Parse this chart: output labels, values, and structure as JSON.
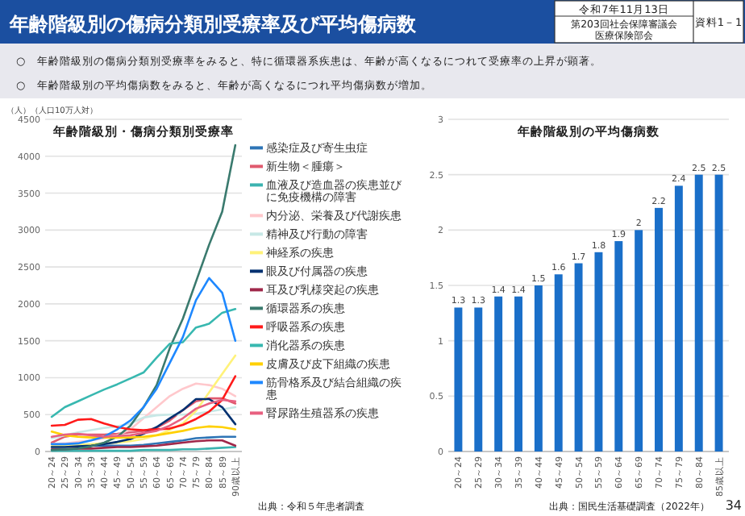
{
  "chart_data": [
    {
      "type": "line",
      "title": "年齢階級別・傷病分類別受療率",
      "ylabel": "（人）（人口10万人対）",
      "categories": [
        "20～24",
        "25～29",
        "30～34",
        "35～39",
        "40～44",
        "45～49",
        "50～54",
        "55～59",
        "60～64",
        "65～69",
        "70～74",
        "75～79",
        "80～84",
        "85～89",
        "90歳以上"
      ],
      "ylim": [
        0,
        4500
      ],
      "yticks": [
        0,
        500,
        1000,
        1500,
        2000,
        2500,
        3000,
        3500,
        4000,
        4500
      ],
      "grid": "y",
      "legend": "right",
      "series": [
        {
          "name": "感染症及び寄生虫症",
          "color": "#2e75b6",
          "values": [
            90,
            90,
            90,
            80,
            80,
            80,
            80,
            90,
            110,
            130,
            150,
            180,
            190,
            200,
            200
          ]
        },
        {
          "name": "新生物＜腫瘍＞",
          "color": "#e05a6e",
          "values": [
            120,
            200,
            230,
            230,
            230,
            240,
            260,
            280,
            320,
            420,
            560,
            680,
            720,
            720,
            650
          ]
        },
        {
          "name": "血液及び造血器の疾患並びに免疫機構の障害",
          "color": "#3cb3b0",
          "values": [
            10,
            10,
            10,
            10,
            10,
            10,
            10,
            20,
            20,
            20,
            30,
            30,
            40,
            50,
            60
          ]
        },
        {
          "name": "内分泌、栄養及び代謝疾患",
          "color": "#ffc8cc",
          "values": [
            100,
            110,
            130,
            150,
            180,
            220,
            300,
            450,
            600,
            750,
            850,
            920,
            900,
            850,
            750
          ]
        },
        {
          "name": "精神及び行動の障害",
          "color": "#c7e8e6",
          "values": [
            180,
            220,
            260,
            290,
            320,
            340,
            380,
            460,
            490,
            500,
            500,
            510,
            540,
            570,
            600
          ]
        },
        {
          "name": "神経系の疾患",
          "color": "#fff27a",
          "values": [
            80,
            80,
            90,
            100,
            110,
            120,
            140,
            170,
            220,
            290,
            380,
            550,
            800,
            1050,
            1300
          ]
        },
        {
          "name": "眼及び付属器の疾患",
          "color": "#003070",
          "values": [
            60,
            60,
            70,
            80,
            100,
            130,
            170,
            240,
            330,
            450,
            560,
            710,
            710,
            600,
            370
          ]
        },
        {
          "name": "耳及び乳様突起の疾患",
          "color": "#a0284a",
          "values": [
            30,
            30,
            40,
            40,
            50,
            60,
            60,
            70,
            80,
            100,
            120,
            140,
            150,
            150,
            80
          ]
        },
        {
          "name": "循環器系の疾患",
          "color": "#3a7a6e",
          "values": [
            20,
            30,
            40,
            70,
            120,
            200,
            350,
            600,
            900,
            1400,
            1800,
            2300,
            2800,
            3250,
            4150
          ]
        },
        {
          "name": "呼吸器系の疾患",
          "color": "#ff1a1a",
          "values": [
            350,
            360,
            430,
            440,
            380,
            330,
            300,
            290,
            300,
            310,
            360,
            440,
            540,
            700,
            1020
          ]
        },
        {
          "name": "消化器系の疾患",
          "color": "#38b8b0",
          "values": [
            470,
            600,
            680,
            760,
            840,
            910,
            990,
            1070,
            1270,
            1460,
            1480,
            1680,
            1730,
            1880,
            1930
          ]
        },
        {
          "name": "皮膚及び皮下組織の疾患",
          "color": "#ffd000",
          "values": [
            270,
            220,
            200,
            190,
            190,
            190,
            190,
            200,
            220,
            250,
            280,
            320,
            340,
            330,
            300
          ]
        },
        {
          "name": "筋骨格系及び結合組織の疾患",
          "color": "#1e88ff",
          "values": [
            100,
            100,
            110,
            150,
            200,
            300,
            420,
            600,
            850,
            1200,
            1550,
            2050,
            2350,
            2150,
            1500
          ]
        },
        {
          "name": "腎尿路生殖器系の疾患",
          "color": "#e86080",
          "values": [
            200,
            230,
            240,
            220,
            200,
            210,
            220,
            250,
            280,
            350,
            450,
            580,
            650,
            700,
            680
          ]
        }
      ],
      "annotations": [
        "年齢階級別の傷病分類別受療率及び平均傷病数",
        "令和7年11月13日",
        "第203回社会保障審議会医療保険部会",
        "資料1－1",
        "○　年齢階級別の傷病分類別受療率をみると、特に循環器系疾患は、年齢が高くなるにつれて受療率の上昇が顕著。",
        "○　年齢階級別の平均傷病数をみると、年齢が高くなるにつれ平均傷病数が増加。",
        "出典：令和５年患者調査"
      ]
    },
    {
      "type": "bar",
      "title": "年齢階級別の平均傷病数",
      "categories": [
        "20～24",
        "25～29",
        "30～34",
        "35～39",
        "40～44",
        "45～49",
        "50～54",
        "55～59",
        "60～64",
        "65～69",
        "70～74",
        "75～79",
        "80～84",
        "85歳以上"
      ],
      "values": [
        1.3,
        1.3,
        1.4,
        1.4,
        1.5,
        1.6,
        1.7,
        1.8,
        1.9,
        2,
        2.2,
        2.4,
        2.5,
        2.5
      ],
      "color": "#1a6fc9",
      "ylim": [
        0,
        3
      ],
      "yticks": [
        0,
        0.5,
        1,
        1.5,
        2,
        2.5,
        3
      ],
      "grid": "y",
      "data_labels": true,
      "annotations": [
        "出典：国民生活基礎調査（2022年）",
        "34"
      ]
    }
  ]
}
